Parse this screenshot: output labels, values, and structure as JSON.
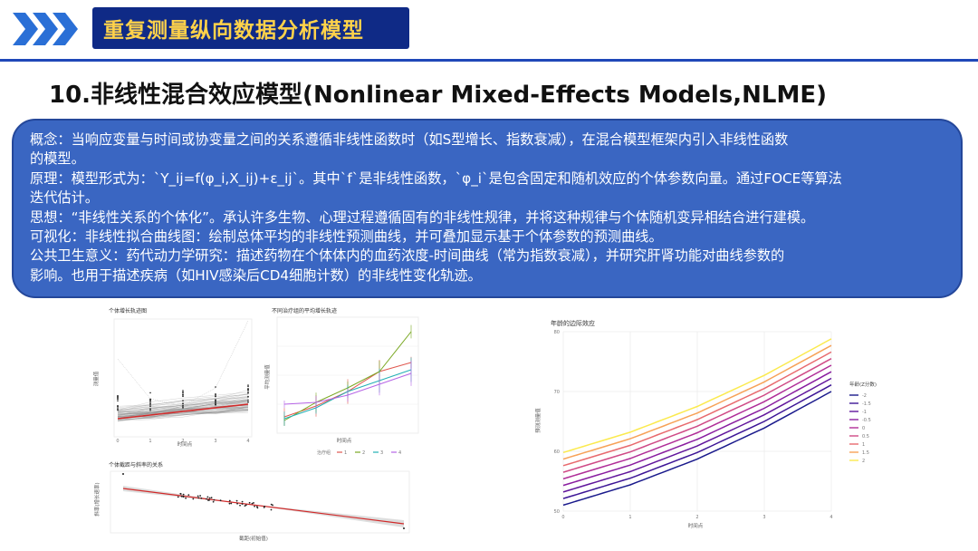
{
  "header": {
    "title": "重复测量纵向数据分析模型",
    "colors": {
      "title_bg": "#0f2a86",
      "title_fg": "#ffd24a",
      "accent": "#1f48b8"
    }
  },
  "section": {
    "title": "10.非线性混合效应模型(Nonlinear Mixed-Effects Models,NLME)"
  },
  "concept_box": {
    "color": "#3a66c2",
    "lines": [
      "概念：当响应变量与时间或协变量之间的关系遵循非线性函数时（如S型增长、指数衰减），在混合模型框架内引入非线性函数",
      "的模型。",
      "原理：模型形式为：`Y_ij=f(φ_i,X_ij)+ε_ij`。其中`f`是非线性函数，`φ_i`是包含固定和随机效应的个体参数向量。通过FOCE等算法",
      "迭代估计。",
      "思想：“非线性关系的个体化”。承认许多生物、心理过程遵循固有的非线性规律，并将这种规律与个体随机变异相结合进行建模。",
      "可视化：非线性拟合曲线图：绘制总体平均的非线性预测曲线，并可叠加显示基于个体参数的预测曲线。",
      "公共卫生意义：药代动力学研究：描述药物在个体体内的血药浓度-时间曲线（常为指数衰减），并研究肝肾功能对曲线参数的",
      "影响。也用于描述疾病（如HIV感染后CD4细胞计数）的非线性变化轨迹。"
    ]
  },
  "figures": {
    "fig1": {
      "title": "个体增长轨迹图",
      "xlabel": "时间点",
      "ylabel": "测量值",
      "xticks": [
        "0",
        "1",
        "2",
        "3",
        "4"
      ]
    },
    "fig2": {
      "title": "不同治疗组的平均增长轨迹",
      "xlabel": "时间点",
      "ylabel": "平均测量值",
      "legend_title": "治疗组",
      "groups": [
        "1",
        "2",
        "3",
        "4"
      ],
      "group_colors": [
        "#e0584f",
        "#7aa823",
        "#22b0b5",
        "#b664e6"
      ]
    },
    "fig3": {
      "title": "个体截距与斜率的关系",
      "xlabel": "截距(初始值)",
      "ylabel": "斜率(增长速率)"
    },
    "fig4": {
      "title": "年龄的边际效应",
      "xlabel": "时间点",
      "ylabel": "预测测量值",
      "legend_title": "年龄(Z分数)",
      "xticks": [
        "0",
        "1",
        "2",
        "3",
        "4"
      ],
      "yticks": [
        "50",
        "60",
        "70",
        "80"
      ],
      "chart_data": {
        "type": "line",
        "x": [
          0,
          1,
          2,
          3,
          4
        ],
        "xlim": [
          0,
          4
        ],
        "ylim": [
          50,
          80
        ],
        "series": [
          {
            "name": "-2",
            "color": "#1a1a8c",
            "values": [
              51.0,
              54.4,
              58.7,
              63.9,
              70.0
            ]
          },
          {
            "name": "-1.5",
            "color": "#3d1596",
            "values": [
              52.1,
              55.5,
              59.8,
              65.0,
              71.1
            ]
          },
          {
            "name": "-1",
            "color": "#61169c",
            "values": [
              53.2,
              56.6,
              60.9,
              66.1,
              72.2
            ]
          },
          {
            "name": "-0.5",
            "color": "#8a1ea0",
            "values": [
              54.3,
              57.7,
              62.0,
              67.2,
              73.3
            ]
          },
          {
            "name": "0",
            "color": "#b02e98",
            "values": [
              55.4,
              58.8,
              63.1,
              68.3,
              74.4
            ]
          },
          {
            "name": "0.5",
            "color": "#cf4a86",
            "values": [
              56.5,
              59.9,
              64.2,
              69.4,
              75.5
            ]
          },
          {
            "name": "1",
            "color": "#e86a6e",
            "values": [
              57.6,
              61.0,
              65.3,
              70.5,
              76.6
            ]
          },
          {
            "name": "1.5",
            "color": "#f7a258",
            "values": [
              58.7,
              62.1,
              66.4,
              71.6,
              77.7
            ]
          },
          {
            "name": "2",
            "color": "#fbea4e",
            "values": [
              59.8,
              63.2,
              67.5,
              72.7,
              78.8
            ]
          }
        ]
      }
    }
  }
}
